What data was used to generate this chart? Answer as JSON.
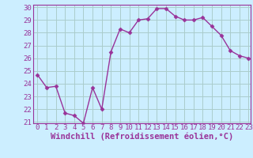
{
  "hours": [
    0,
    1,
    2,
    3,
    4,
    5,
    6,
    7,
    8,
    9,
    10,
    11,
    12,
    13,
    14,
    15,
    16,
    17,
    18,
    19,
    20,
    21,
    22,
    23
  ],
  "values": [
    24.7,
    23.7,
    23.8,
    21.7,
    21.5,
    20.9,
    23.7,
    22.0,
    26.5,
    28.3,
    28.0,
    29.0,
    29.1,
    29.9,
    29.9,
    29.3,
    29.0,
    29.0,
    29.2,
    28.5,
    27.8,
    26.6,
    26.2,
    26.0
  ],
  "line_color": "#993399",
  "marker": "D",
  "marker_size": 2.5,
  "bg_color": "#cceeff",
  "grid_color": "#aacccc",
  "xlabel": "Windchill (Refroidissement éolien,°C)",
  "ylim_min": 21,
  "ylim_max": 30,
  "xlim_min": 0,
  "xlim_max": 23,
  "yticks": [
    21,
    22,
    23,
    24,
    25,
    26,
    27,
    28,
    29,
    30
  ],
  "xticks": [
    0,
    1,
    2,
    3,
    4,
    5,
    6,
    7,
    8,
    9,
    10,
    11,
    12,
    13,
    14,
    15,
    16,
    17,
    18,
    19,
    20,
    21,
    22,
    23
  ],
  "tick_color": "#993399",
  "tick_fontsize": 6.5,
  "xlabel_fontsize": 7.5,
  "spine_color": "#993399"
}
